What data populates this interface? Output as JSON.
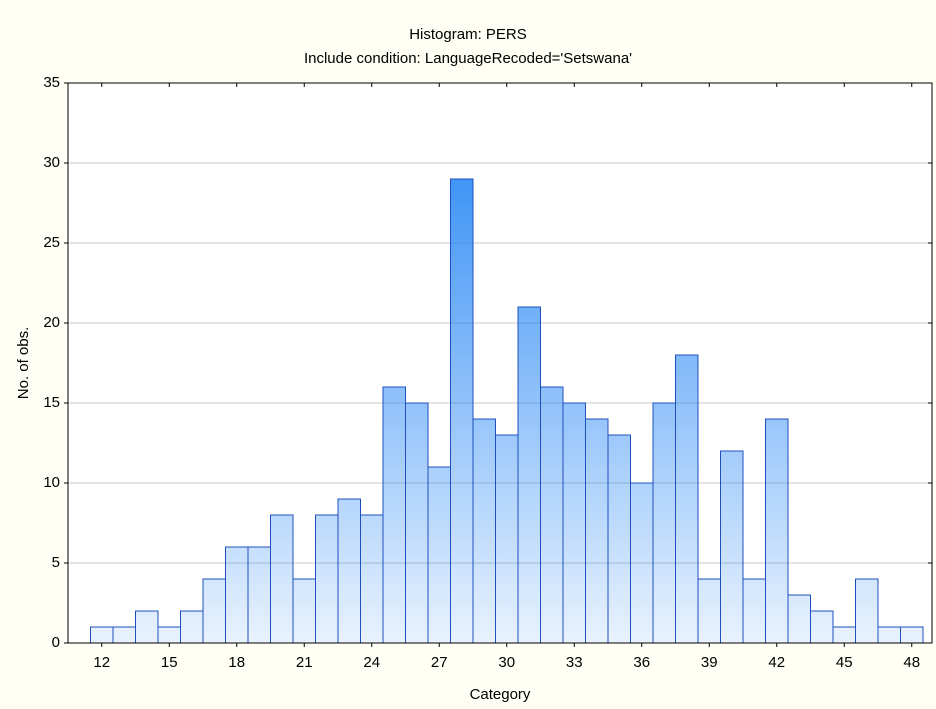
{
  "chart_data": {
    "type": "histogram",
    "title": "Histogram: PERS",
    "subtitle": "Include condition: LanguageRecoded='Setswana'",
    "x_label": "Category",
    "y_label": "No. of obs.",
    "bins": [
      11.5,
      12.5,
      13.5,
      14.5,
      15.5,
      16.5,
      17.5,
      18.5,
      19.5,
      20.5,
      21.5,
      22.5,
      23.5,
      24.5,
      25.5,
      26.5,
      27.5,
      28.5,
      29.5,
      30.5,
      31.5,
      32.5,
      33.5,
      34.5,
      35.5,
      36.5,
      37.5,
      38.5,
      39.5,
      40.5,
      41.5,
      42.5,
      43.5,
      44.5,
      45.5,
      46.5,
      47.5,
      48.5
    ],
    "values": [
      1,
      1,
      2,
      1,
      2,
      4,
      6,
      6,
      8,
      4,
      8,
      9,
      8,
      16,
      15,
      11,
      29,
      14,
      13,
      21,
      16,
      15,
      14,
      13,
      10,
      15,
      18,
      4,
      12,
      4,
      14,
      3,
      2,
      1,
      4,
      1,
      1
    ],
    "color": "#1e82f5",
    "edge_color": "#2050c0",
    "xlim": [
      10.5,
      48.9
    ],
    "xticks": [
      12,
      15,
      18,
      21,
      24,
      27,
      30,
      33,
      36,
      39,
      42,
      45,
      48
    ],
    "ylim": [
      0,
      35
    ],
    "yticks": [
      0,
      5,
      10,
      15,
      20,
      25,
      30,
      35
    ],
    "grid": true
  }
}
